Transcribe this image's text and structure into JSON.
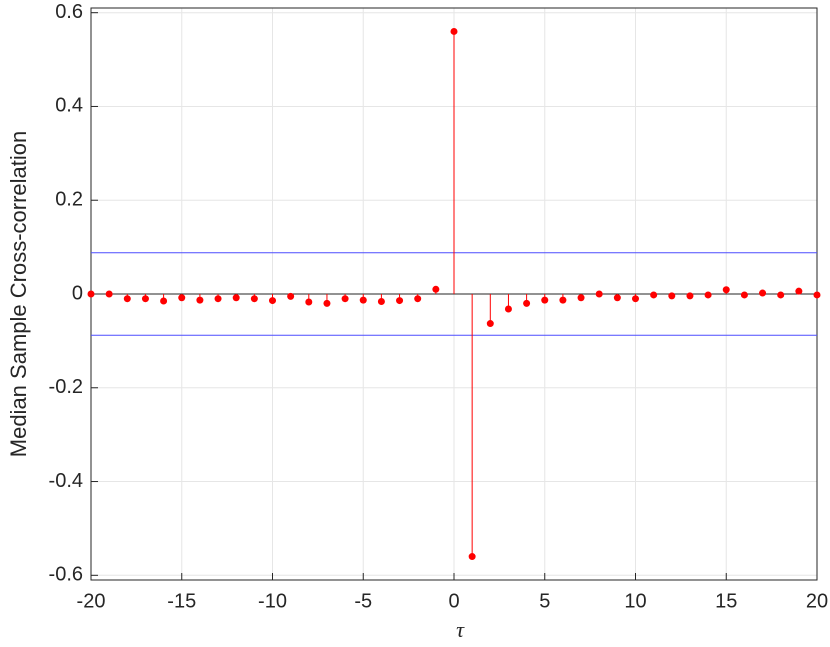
{
  "chart_data": {
    "type": "stem",
    "xlabel": "τ",
    "ylabel": "Median Sample Cross-correlation",
    "x": [
      -20,
      -19,
      -18,
      -17,
      -16,
      -15,
      -14,
      -13,
      -12,
      -11,
      -10,
      -9,
      -8,
      -7,
      -6,
      -5,
      -4,
      -3,
      -2,
      -1,
      0,
      1,
      2,
      3,
      4,
      5,
      6,
      7,
      8,
      9,
      10,
      11,
      12,
      13,
      14,
      15,
      16,
      17,
      18,
      19,
      20
    ],
    "values": [
      0,
      0,
      -0.01,
      -0.01,
      -0.015,
      -0.008,
      -0.013,
      -0.01,
      -0.008,
      -0.01,
      -0.014,
      -0.005,
      -0.017,
      -0.02,
      -0.01,
      -0.013,
      -0.016,
      -0.014,
      -0.01,
      0.01,
      0.56,
      -0.56,
      -0.063,
      -0.032,
      -0.02,
      -0.013,
      -0.013,
      -0.008,
      0,
      -0.008,
      -0.01,
      -0.002,
      -0.004,
      -0.004,
      -0.002,
      0.009,
      -0.002,
      0.002,
      -0.002,
      0.006,
      -0.002
    ],
    "color": "#ff0000",
    "conf_bounds": [
      0.088,
      -0.088
    ],
    "conf_color": "#4d4dff",
    "xlim": [
      -20,
      20
    ],
    "xticks": [
      -20,
      -15,
      -10,
      -5,
      0,
      5,
      10,
      15,
      20
    ],
    "ylim": [
      -0.61,
      0.61
    ],
    "yticks": [
      -0.6,
      -0.4,
      -0.2,
      0,
      0.2,
      0.4,
      0.6
    ],
    "grid": true
  }
}
